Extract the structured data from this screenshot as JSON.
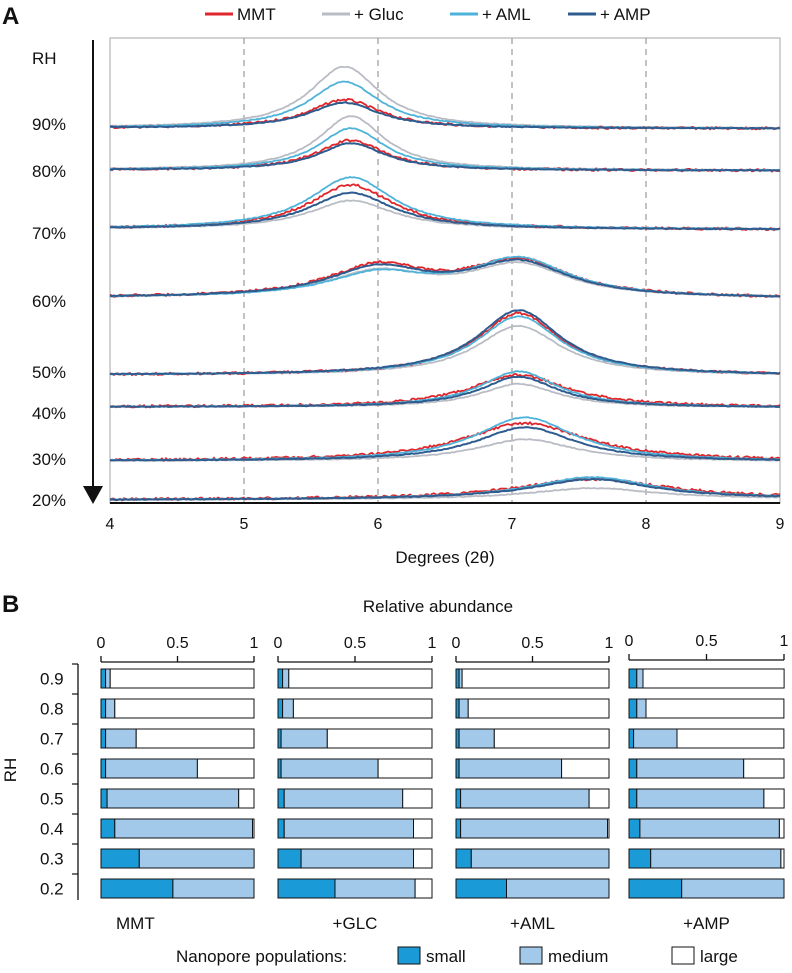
{
  "chart_data": [
    {
      "panel": "A",
      "type": "line",
      "xlabel": "Degrees (2θ)",
      "xlim": [
        4,
        9
      ],
      "x_ticks": [
        "4",
        "5",
        "6",
        "7",
        "8",
        "9"
      ],
      "dashed_gridlines_x": [
        5,
        6,
        7,
        8
      ],
      "y_axis_label": "RH",
      "legend_position": "top",
      "legend": [
        {
          "name": "MMT",
          "color": "#e0262b"
        },
        {
          "name": "+ Gluc",
          "color": "#b9bcc4"
        },
        {
          "name": "+ AML",
          "color": "#4fb3d9"
        },
        {
          "name": "+ AMP",
          "color": "#2e5c8f"
        }
      ],
      "offset_traces": [
        {
          "rh": "90%",
          "peaks": [
            {
              "x": 5.75,
              "height": [
                0.38,
                0.82,
                0.62,
                0.34
              ]
            }
          ]
        },
        {
          "rh": "80%",
          "peaks": [
            {
              "x": 5.8,
              "height": [
                0.5,
                0.9,
                0.7,
                0.45
              ]
            }
          ]
        },
        {
          "rh": "70%",
          "peaks": [
            {
              "x": 5.8,
              "height": [
                0.85,
                0.55,
                1.0,
                0.7
              ]
            }
          ]
        },
        {
          "rh": "60%",
          "peaks": [
            {
              "x": 6.0,
              "height": [
                0.8,
                0.65,
                0.6,
                0.75
              ]
            },
            {
              "x": 7.05,
              "height": [
                0.95,
                0.85,
                1.0,
                0.9
              ]
            }
          ]
        },
        {
          "rh": "50%",
          "peaks": [
            {
              "x": 7.05,
              "height": [
                1.0,
                0.8,
                0.95,
                1.05
              ]
            }
          ]
        },
        {
          "rh": "40%",
          "peaks": [
            {
              "x": 7.05,
              "height": [
                0.9,
                0.65,
                1.0,
                0.85
              ]
            }
          ]
        },
        {
          "rh": "30%",
          "peaks": [
            {
              "x": 7.1,
              "height": [
                0.95,
                0.55,
                1.1,
                0.85
              ]
            }
          ]
        },
        {
          "rh": "20%",
          "peaks": [
            {
              "x": 7.6,
              "height": [
                0.9,
                0.5,
                1.0,
                0.9
              ]
            }
          ]
        }
      ]
    },
    {
      "panel": "B",
      "type": "bar",
      "orientation": "horizontal-stacked",
      "title": "Relative abundance",
      "ylabel": "RH",
      "categories": [
        "0.9",
        "0.8",
        "0.7",
        "0.6",
        "0.5",
        "0.4",
        "0.3",
        "0.2"
      ],
      "x_ticks": [
        "0",
        "0.5",
        "1"
      ],
      "xlim": [
        0,
        1
      ],
      "legend_title": "Nanopore populations:",
      "legend_position": "bottom",
      "series": [
        {
          "name": "small",
          "color": "#1a9ad6"
        },
        {
          "name": "medium",
          "color": "#a3c9ea"
        },
        {
          "name": "large",
          "color": "#ffffff"
        }
      ],
      "groups": [
        {
          "name": "MMT",
          "values": [
            [
              0.03,
              0.03,
              0.94
            ],
            [
              0.03,
              0.06,
              0.91
            ],
            [
              0.03,
              0.2,
              0.77
            ],
            [
              0.03,
              0.6,
              0.37
            ],
            [
              0.04,
              0.86,
              0.1
            ],
            [
              0.09,
              0.9,
              0.01
            ],
            [
              0.25,
              0.75,
              0.0
            ],
            [
              0.47,
              0.53,
              0.0
            ]
          ]
        },
        {
          "name": "+GLC",
          "values": [
            [
              0.03,
              0.04,
              0.93
            ],
            [
              0.03,
              0.07,
              0.9
            ],
            [
              0.02,
              0.3,
              0.68
            ],
            [
              0.02,
              0.63,
              0.35
            ],
            [
              0.04,
              0.77,
              0.19
            ],
            [
              0.04,
              0.84,
              0.12
            ],
            [
              0.15,
              0.73,
              0.12
            ],
            [
              0.37,
              0.52,
              0.11
            ]
          ]
        },
        {
          "name": "+AML",
          "values": [
            [
              0.02,
              0.02,
              0.96
            ],
            [
              0.02,
              0.06,
              0.92
            ],
            [
              0.02,
              0.23,
              0.75
            ],
            [
              0.02,
              0.67,
              0.31
            ],
            [
              0.03,
              0.84,
              0.13
            ],
            [
              0.03,
              0.96,
              0.01
            ],
            [
              0.1,
              0.9,
              0.0
            ],
            [
              0.33,
              0.67,
              0.0
            ]
          ]
        },
        {
          "name": "+AMP",
          "values": [
            [
              0.05,
              0.04,
              0.91
            ],
            [
              0.05,
              0.06,
              0.89
            ],
            [
              0.03,
              0.28,
              0.69
            ],
            [
              0.05,
              0.69,
              0.26
            ],
            [
              0.05,
              0.82,
              0.13
            ],
            [
              0.07,
              0.9,
              0.03
            ],
            [
              0.14,
              0.84,
              0.02
            ],
            [
              0.34,
              0.66,
              0.0
            ]
          ]
        }
      ]
    }
  ]
}
